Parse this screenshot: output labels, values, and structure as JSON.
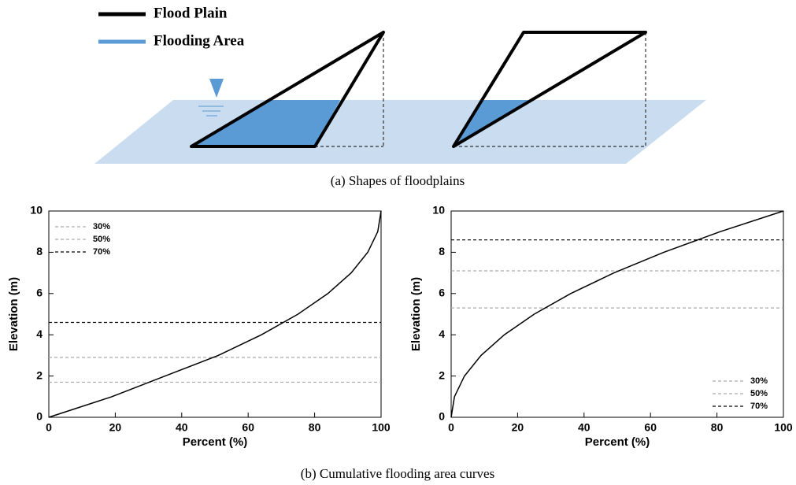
{
  "diagram": {
    "legend": [
      {
        "name": "Flood Plain",
        "color": "#000000"
      },
      {
        "name": "Flooding Area",
        "color": "#5b9bd5"
      }
    ],
    "caption": "(a) Shapes of floodplains"
  },
  "caption": "(b) Cumulative flooding area curves",
  "chart_data": [
    {
      "type": "line",
      "x_label": "Percent (%)",
      "y_label": "Elevation (m)",
      "xlim": [
        0,
        100
      ],
      "xticks": [
        0,
        20,
        40,
        60,
        80,
        100
      ],
      "ylim": [
        0,
        10
      ],
      "yticks": [
        0,
        2,
        4,
        6,
        8,
        10
      ],
      "legend": "upper left",
      "series": [
        {
          "color": "#000000",
          "x": [
            0,
            19,
            35,
            51,
            64,
            75,
            84,
            91,
            96,
            99,
            100
          ],
          "values": [
            0,
            1,
            2,
            3,
            4,
            5,
            6,
            7,
            8,
            9,
            10
          ]
        }
      ],
      "hlines": [
        {
          "name": "30%",
          "value": 1.7,
          "color": "#aaaaaa"
        },
        {
          "name": "50%",
          "value": 2.9,
          "color": "#aaaaaa"
        },
        {
          "name": "70%",
          "value": 4.6,
          "color": "#000000"
        }
      ]
    },
    {
      "type": "line",
      "x_label": "Percent (%)",
      "y_label": "Elevation (m)",
      "xlim": [
        0,
        100
      ],
      "xticks": [
        0,
        20,
        40,
        60,
        80,
        100
      ],
      "ylim": [
        0,
        10
      ],
      "yticks": [
        0,
        2,
        4,
        6,
        8,
        10
      ],
      "legend": "lower right",
      "series": [
        {
          "color": "#000000",
          "x": [
            0,
            1,
            4,
            9,
            16,
            25,
            36,
            49,
            64,
            81,
            100
          ],
          "values": [
            0,
            1,
            2,
            3,
            4,
            5,
            6,
            7,
            8,
            9,
            10
          ]
        }
      ],
      "hlines": [
        {
          "name": "30%",
          "value": 5.3,
          "color": "#aaaaaa"
        },
        {
          "name": "50%",
          "value": 7.1,
          "color": "#aaaaaa"
        },
        {
          "name": "70%",
          "value": 8.6,
          "color": "#000000"
        }
      ]
    }
  ]
}
